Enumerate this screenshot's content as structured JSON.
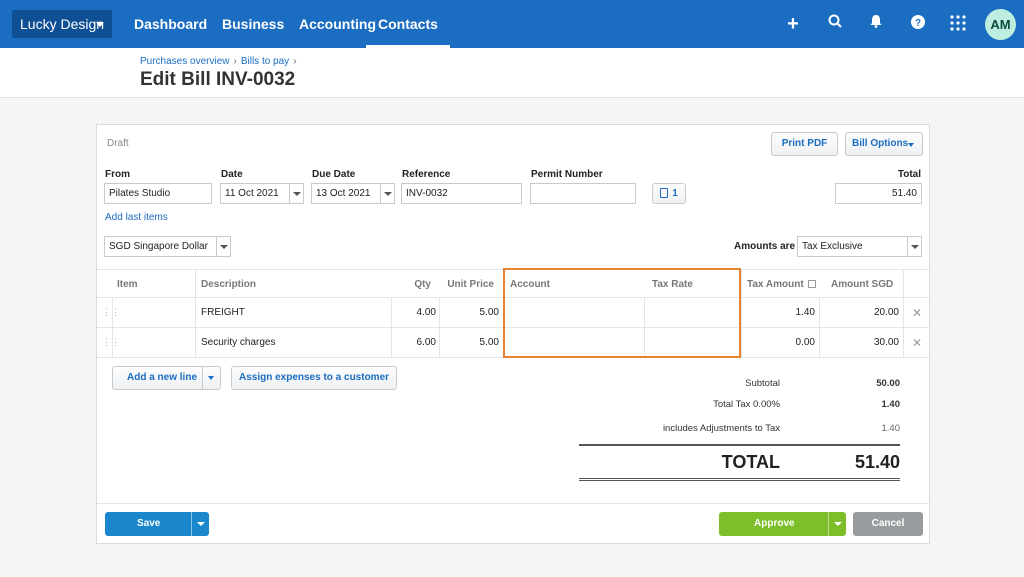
{
  "nav": {
    "org": "Lucky Design",
    "links": [
      "Dashboard",
      "Business",
      "Accounting",
      "Contacts"
    ],
    "active": "Contacts",
    "avatar": "AM",
    "brand_color": "#1b6dc1"
  },
  "header": {
    "breadcrumb": [
      "Purchases overview",
      "Bills to pay"
    ],
    "title": "Edit Bill INV-0032"
  },
  "bill": {
    "status": "Draft",
    "print_pdf": "Print PDF",
    "bill_options": "Bill Options",
    "fields": {
      "from_label": "From",
      "from_value": "Pilates Studio",
      "date_label": "Date",
      "date_value": "11 Oct 2021",
      "due_label": "Due Date",
      "due_value": "13 Oct 2021",
      "ref_label": "Reference",
      "ref_value": "INV-0032",
      "permit_label": "Permit Number",
      "permit_value": "",
      "attach_count": "1",
      "total_label": "Total",
      "total_value": "51.40"
    },
    "add_last_items": "Add last items",
    "currency": "SGD Singapore Dollar",
    "amounts_are_label": "Amounts are",
    "amounts_are_value": "Tax Exclusive"
  },
  "table": {
    "headers": {
      "item": "Item",
      "description": "Description",
      "qty": "Qty",
      "unit_price": "Unit Price",
      "account": "Account",
      "tax_rate": "Tax Rate",
      "tax_amount": "Tax Amount",
      "amount": "Amount SGD"
    },
    "rows": [
      {
        "item": "",
        "description": "FREIGHT",
        "qty": "4.00",
        "unit_price": "5.00",
        "account": "",
        "tax_rate": "",
        "tax_amount": "1.40",
        "amount": "20.00"
      },
      {
        "item": "",
        "description": "Security charges",
        "qty": "6.00",
        "unit_price": "5.00",
        "account": "",
        "tax_rate": "",
        "tax_amount": "0.00",
        "amount": "30.00"
      }
    ],
    "highlight_color": "#e8822c"
  },
  "actions": {
    "add_line": "Add a new line",
    "assign": "Assign expenses to a customer"
  },
  "totals": {
    "subtotal_label": "Subtotal",
    "subtotal_value": "50.00",
    "tax_label": "Total Tax 0.00%",
    "tax_value": "1.40",
    "adj_label": "includes Adjustments to Tax",
    "adj_value": "1.40",
    "total_label": "TOTAL",
    "total_value": "51.40"
  },
  "footer": {
    "save": "Save",
    "approve": "Approve",
    "cancel": "Cancel"
  }
}
